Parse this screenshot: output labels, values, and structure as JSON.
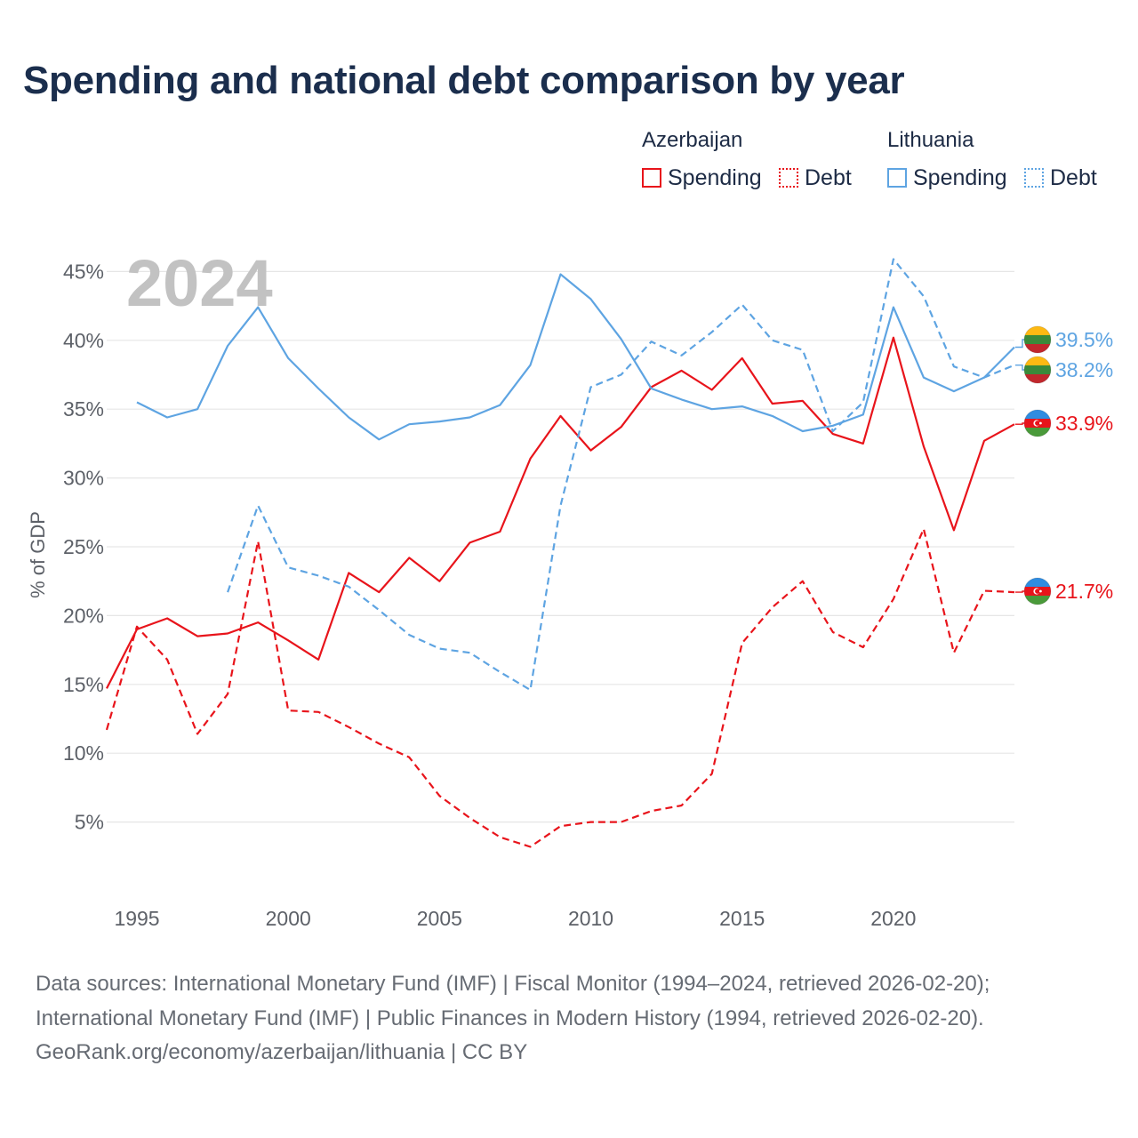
{
  "title": "Spending and national debt comparison by year",
  "legend": {
    "groups": [
      {
        "name": "Azerbaijan",
        "color": "#e8141b",
        "items": [
          {
            "label": "Spending",
            "style": "solid"
          },
          {
            "label": "Debt",
            "style": "dotted"
          }
        ]
      },
      {
        "name": "Lithuania",
        "color": "#5ea4e2",
        "items": [
          {
            "label": "Spending",
            "style": "solid"
          },
          {
            "label": "Debt",
            "style": "dotted"
          }
        ]
      }
    ]
  },
  "colors": {
    "azerbaijan": "#e8141b",
    "lithuania": "#5ea4e2",
    "grid": "#e6e6e6",
    "axis_text": "#5d6168",
    "year_overlay": "#c2c2c2"
  },
  "flags": {
    "lithuania": "lithuania-flag-icon",
    "azerbaijan": "azerbaijan-flag-icon"
  },
  "sources": [
    "Data sources: International Monetary Fund (IMF) | Fiscal Monitor (1994–2024, retrieved 2026-02-20);",
    "International Monetary Fund (IMF) | Public Finances in Modern History (1994, retrieved 2026-02-20).",
    "GeoRank.org/economy/azerbaijan/lithuania | CC BY"
  ],
  "chart_data": {
    "type": "line",
    "year_label": "2024",
    "ylabel": "% of GDP",
    "xlim": [
      1994,
      2024
    ],
    "ylim": [
      0,
      47
    ],
    "x_ticks": [
      1995,
      2000,
      2005,
      2010,
      2015,
      2020
    ],
    "y_ticks": [
      {
        "value": 5,
        "label": "5%"
      },
      {
        "value": 10,
        "label": "10%"
      },
      {
        "value": 15,
        "label": "15%"
      },
      {
        "value": 20,
        "label": "20%"
      },
      {
        "value": 25,
        "label": "25%"
      },
      {
        "value": 30,
        "label": "30%"
      },
      {
        "value": 35,
        "label": "35%"
      },
      {
        "value": 40,
        "label": "40%"
      },
      {
        "value": 45,
        "label": "45%"
      }
    ],
    "series": [
      {
        "name": "Azerbaijan Spending",
        "country": "azerbaijan",
        "dashed": false,
        "x": [
          1994,
          1995,
          1996,
          1997,
          1998,
          1999,
          2000,
          2001,
          2002,
          2003,
          2004,
          2005,
          2006,
          2007,
          2008,
          2009,
          2010,
          2011,
          2012,
          2013,
          2014,
          2015,
          2016,
          2017,
          2018,
          2019,
          2020,
          2021,
          2022,
          2023,
          2024
        ],
        "values": [
          14.7,
          19.0,
          19.8,
          18.5,
          18.7,
          19.5,
          18.2,
          16.8,
          23.1,
          21.7,
          24.2,
          22.5,
          25.3,
          26.1,
          31.4,
          34.5,
          32.0,
          33.7,
          36.6,
          37.8,
          36.4,
          38.7,
          35.4,
          35.6,
          33.2,
          32.5,
          40.2,
          32.3,
          26.2,
          32.7,
          33.9
        ],
        "end_label": "33.9%"
      },
      {
        "name": "Azerbaijan Debt",
        "country": "azerbaijan",
        "dashed": true,
        "x": [
          1994,
          1995,
          1996,
          1997,
          1998,
          1999,
          2000,
          2001,
          2002,
          2003,
          2004,
          2005,
          2006,
          2007,
          2008,
          2009,
          2010,
          2011,
          2012,
          2013,
          2014,
          2015,
          2016,
          2017,
          2018,
          2019,
          2020,
          2021,
          2022,
          2023,
          2024
        ],
        "values": [
          11.7,
          19.2,
          16.8,
          11.4,
          14.3,
          25.4,
          13.1,
          13.0,
          11.9,
          10.7,
          9.7,
          6.9,
          5.3,
          3.9,
          3.2,
          4.7,
          5.0,
          5.0,
          5.8,
          6.2,
          8.5,
          18.0,
          20.6,
          22.5,
          18.8,
          17.7,
          21.2,
          26.3,
          17.3,
          21.8,
          21.7
        ],
        "end_label": "21.7%"
      },
      {
        "name": "Lithuania Spending",
        "country": "lithuania",
        "dashed": false,
        "x": [
          1995,
          1996,
          1997,
          1998,
          1999,
          2000,
          2001,
          2002,
          2003,
          2004,
          2005,
          2006,
          2007,
          2008,
          2009,
          2010,
          2011,
          2012,
          2013,
          2014,
          2015,
          2016,
          2017,
          2018,
          2019,
          2020,
          2021,
          2022,
          2023,
          2024
        ],
        "values": [
          35.5,
          34.4,
          35.0,
          39.6,
          42.4,
          38.7,
          36.5,
          34.4,
          32.8,
          33.9,
          34.1,
          34.4,
          35.3,
          38.2,
          44.8,
          43.0,
          40.1,
          36.5,
          35.7,
          35.0,
          35.2,
          34.5,
          33.4,
          33.8,
          34.6,
          42.4,
          37.3,
          36.3,
          37.3,
          39.5
        ],
        "end_label": "39.5%"
      },
      {
        "name": "Lithuania Debt",
        "country": "lithuania",
        "dashed": true,
        "x": [
          1998,
          1999,
          2000,
          2001,
          2002,
          2003,
          2004,
          2005,
          2006,
          2007,
          2008,
          2009,
          2010,
          2011,
          2012,
          2013,
          2014,
          2015,
          2016,
          2017,
          2018,
          2019,
          2020,
          2021,
          2022,
          2023,
          2024
        ],
        "values": [
          21.7,
          28.0,
          23.5,
          22.9,
          22.1,
          20.4,
          18.6,
          17.6,
          17.3,
          15.9,
          14.6,
          28.0,
          36.6,
          37.5,
          39.9,
          38.9,
          40.6,
          42.6,
          40.0,
          39.3,
          33.4,
          35.5,
          45.9,
          43.2,
          38.1,
          37.3,
          38.2
        ],
        "end_label": "38.2%"
      }
    ]
  }
}
